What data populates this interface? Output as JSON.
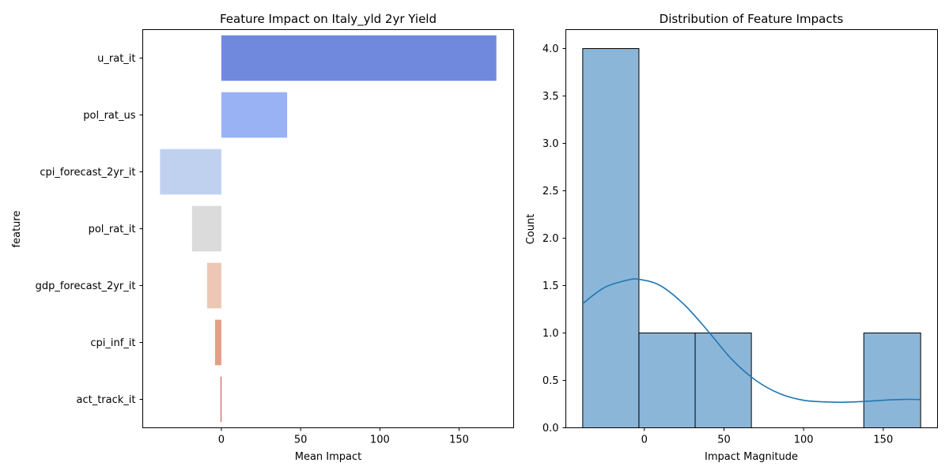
{
  "chart_data": [
    {
      "type": "bar",
      "orientation": "horizontal",
      "title": "Feature Impact on Italy_yld 2yr Yield",
      "xlabel": "Mean Impact",
      "ylabel": "feature",
      "categories": [
        "u_rat_it",
        "pol_rat_us",
        "cpi_forecast_2yr_it",
        "pol_rat_it",
        "gdp_forecast_2yr_it",
        "cpi_inf_it",
        "act_track_it"
      ],
      "values": [
        173.5,
        41.5,
        -38.7,
        -18.5,
        -9,
        -4,
        -0.5
      ],
      "colors": [
        "#7189dd",
        "#98b2f3",
        "#c0d1f0",
        "#dbdbdb",
        "#edc7b4",
        "#e49e88",
        "#c0424a"
      ],
      "xlim": [
        -49.6,
        184.4
      ],
      "xticks": [
        0,
        50,
        100,
        150
      ],
      "grid": false
    },
    {
      "type": "histogram",
      "title": "Distribution of Feature Impacts",
      "xlabel": "Impact Magnitude",
      "ylabel": "Count",
      "bins": [
        {
          "x0": -38.7,
          "x1": -3.4,
          "count": 4
        },
        {
          "x0": -3.4,
          "x1": 31.9,
          "count": 1
        },
        {
          "x0": 31.9,
          "x1": 67.2,
          "count": 1
        },
        {
          "x0": 67.2,
          "x1": 102.5,
          "count": 0
        },
        {
          "x0": 102.5,
          "x1": 137.8,
          "count": 0
        },
        {
          "x0": 137.8,
          "x1": 173.5,
          "count": 1
        }
      ],
      "kde": {
        "x": [
          -38.7,
          -25,
          -10,
          -3,
          10,
          25,
          40,
          55,
          70,
          85,
          100,
          115,
          127,
          140,
          155,
          165,
          173.5
        ],
        "y": [
          1.31,
          1.48,
          1.56,
          1.565,
          1.5,
          1.3,
          1.02,
          0.72,
          0.5,
          0.36,
          0.29,
          0.272,
          0.27,
          0.28,
          0.295,
          0.3,
          0.298
        ]
      },
      "bar_color": "#8cb6d8",
      "kde_color": "#1f77b4",
      "xlim": [
        -49.3,
        184.1
      ],
      "ylim": [
        0,
        4.2
      ],
      "xticks": [
        0,
        50,
        100,
        150
      ],
      "yticks": [
        "0.0",
        "0.5",
        "1.0",
        "1.5",
        "2.0",
        "2.5",
        "3.0",
        "3.5",
        "4.0"
      ],
      "grid": false
    }
  ]
}
